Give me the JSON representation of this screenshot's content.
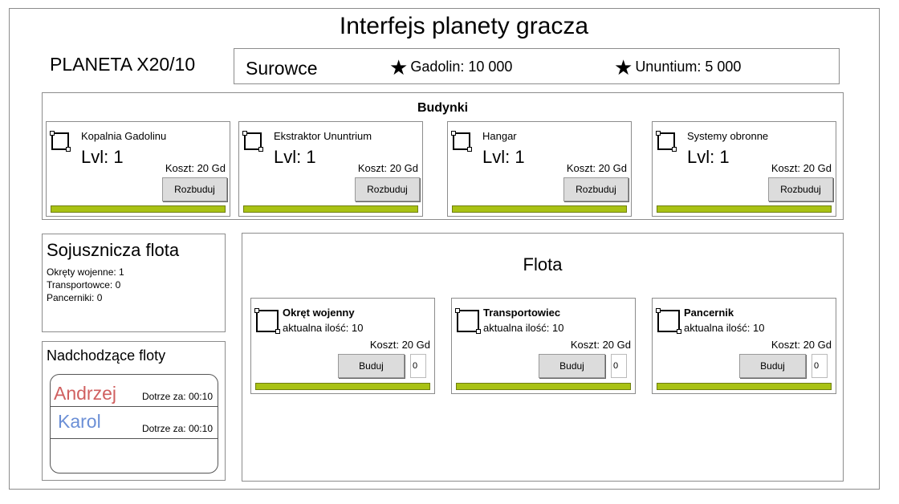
{
  "page": {
    "title": "Interfejs planety gracza",
    "planet_name": "PLANETA X20/10"
  },
  "resources": {
    "title": "Surowce",
    "items": [
      {
        "icon": "star-icon",
        "label": "Gadolin: 10 000"
      },
      {
        "icon": "star-icon",
        "label": "Ununtium: 5 000"
      }
    ]
  },
  "buildings": {
    "title": "Budynki",
    "items": [
      {
        "name": "Kopalnia Gadolinu",
        "level": "Lvl: 1",
        "cost": "Koszt: 20 Gd",
        "button": "Rozbuduj"
      },
      {
        "name": "Ekstraktor Ununtrium",
        "level": "Lvl: 1",
        "cost": "Koszt: 20 Gd",
        "button": "Rozbuduj"
      },
      {
        "name": "Hangar",
        "level": "Lvl: 1",
        "cost": "Koszt: 20 Gd",
        "button": "Rozbuduj"
      },
      {
        "name": "Systemy obronne",
        "level": "Lvl: 1",
        "cost": "Koszt: 20 Gd",
        "button": "Rozbuduj"
      }
    ]
  },
  "allied_fleet": {
    "title": "Sojusznicza flota",
    "lines": [
      "Okręty wojenne: 1",
      "Transportowce: 0",
      "Pancerniki: 0"
    ]
  },
  "incoming_fleets": {
    "title": "Nadchodzące floty",
    "items": [
      {
        "name": "Andrzej",
        "eta": "Dotrze za: 00:10",
        "color": "#d06060"
      },
      {
        "name": "Karol",
        "eta": "Dotrze za: 00:10",
        "color": "#6b8fd6"
      }
    ]
  },
  "fleet": {
    "title": "Flota",
    "items": [
      {
        "name": "Okręt wojenny",
        "quantity": "aktualna ilość: 10",
        "cost": "Koszt: 20 Gd",
        "button": "Buduj",
        "input_value": "0"
      },
      {
        "name": "Transportowiec",
        "quantity": "aktualna ilość: 10",
        "cost": "Koszt: 20 Gd",
        "button": "Buduj",
        "input_value": "0"
      },
      {
        "name": "Pancernik",
        "quantity": "aktualna ilość: 10",
        "cost": "Koszt: 20 Gd",
        "button": "Buduj",
        "input_value": "0"
      }
    ]
  },
  "colors": {
    "progress_bar": "#a9c214",
    "border": "#8c8c8c",
    "button_bg": "#dcdcdc"
  }
}
